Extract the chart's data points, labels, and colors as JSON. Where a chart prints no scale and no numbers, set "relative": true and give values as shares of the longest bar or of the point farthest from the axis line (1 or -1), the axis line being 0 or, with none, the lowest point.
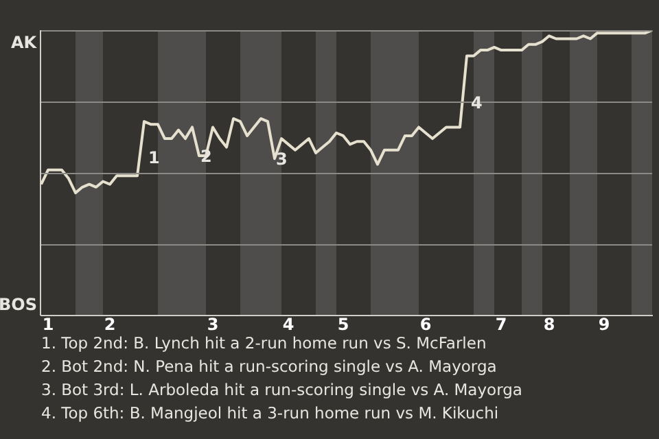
{
  "chart_data": {
    "type": "line",
    "relative": true,
    "categories": [
      null,
      "1",
      null,
      null,
      null,
      null,
      null,
      null,
      null,
      null,
      "2",
      null,
      null,
      null,
      null,
      null,
      null,
      null,
      null,
      null,
      null,
      null,
      null,
      null,
      null,
      "3",
      null,
      null,
      null,
      null,
      null,
      null,
      null,
      null,
      null,
      null,
      "4",
      null,
      null,
      null,
      null,
      null,
      null,
      null,
      "5",
      null,
      null,
      null,
      null,
      null,
      null,
      null,
      null,
      null,
      null,
      null,
      "6",
      null,
      null,
      null,
      null,
      null,
      null,
      null,
      null,
      null,
      null,
      "7",
      null,
      null,
      null,
      null,
      null,
      null,
      "8",
      null,
      null,
      null,
      null,
      null,
      null,
      null,
      "9",
      null,
      null,
      null,
      null,
      null,
      null,
      null
    ],
    "series": [
      {
        "color": "#e6e1cf",
        "values": [
          0.46,
          0.51,
          0.51,
          0.51,
          0.48,
          0.43,
          0.45,
          0.46,
          0.45,
          0.47,
          0.46,
          0.49,
          0.49,
          0.49,
          0.49,
          0.68,
          0.67,
          0.67,
          0.62,
          0.62,
          0.65,
          0.62,
          0.66,
          0.56,
          0.56,
          0.66,
          0.62,
          0.59,
          0.69,
          0.68,
          0.63,
          0.66,
          0.69,
          0.68,
          0.55,
          0.62,
          0.6,
          0.58,
          0.6,
          0.62,
          0.57,
          0.59,
          0.61,
          0.64,
          0.63,
          0.6,
          0.61,
          0.61,
          0.58,
          0.53,
          0.58,
          0.58,
          0.58,
          0.63,
          0.63,
          0.66,
          0.64,
          0.62,
          0.64,
          0.66,
          0.66,
          0.66,
          0.91,
          0.91,
          0.93,
          0.93,
          0.94,
          0.93,
          0.93,
          0.93,
          0.93,
          0.95,
          0.95,
          0.96,
          0.98,
          0.97,
          0.97,
          0.97,
          0.97,
          0.98,
          0.97,
          0.99,
          0.99,
          0.99,
          0.99,
          0.99,
          0.99,
          0.99,
          0.99,
          1.0
        ]
      }
    ],
    "grid": false,
    "legend": false,
    "line_style": "solid",
    "annotations": [
      "AK",
      "BOS",
      "1",
      "2",
      "3",
      "4",
      "1. Top 2nd: B. Lynch hit a 2-run home run vs S. McFarlen",
      "2. Bot 2nd: N. Pena hit a run-scoring single vs A. Mayorga",
      "3. Bot 3rd: L. Arboleda hit a run-scoring single vs A. Mayorga",
      "4. Top 6th: B. Mangjeol hit a 3-run home run vs M. Kikuchi"
    ]
  }
}
